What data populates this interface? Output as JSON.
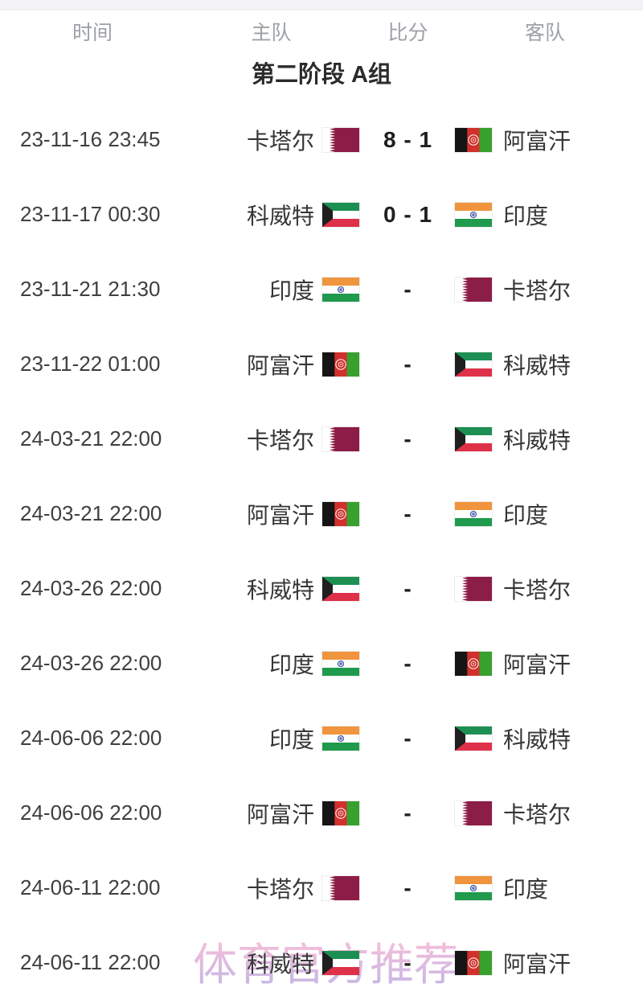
{
  "header": {
    "columns": [
      {
        "id": "time",
        "label": "时间"
      },
      {
        "id": "home",
        "label": "主队"
      },
      {
        "id": "score",
        "label": "比分"
      },
      {
        "id": "away",
        "label": "客队"
      }
    ]
  },
  "section": {
    "title": "第二阶段 A组"
  },
  "watermark": {
    "text": "体育官方推荐",
    "color_top": "#f8b4d2",
    "color_bottom": "#b9aae2"
  },
  "flag_colors": {
    "qatar": {
      "maroon": "#8c1d46",
      "white": "#ffffff"
    },
    "kuwait": {
      "green": "#1e8f53",
      "white": "#ffffff",
      "red": "#df3049",
      "black": "#1f1f1f"
    },
    "afghanistan": {
      "black": "#151515",
      "red": "#d2302c",
      "green": "#38a12e",
      "emblem": "#ffffff"
    },
    "india": {
      "saffron": "#f0943d",
      "white": "#ffffff",
      "green": "#209a4c",
      "navy": "#32479e"
    }
  },
  "matches": [
    {
      "time": "23-11-16 23:45",
      "home": "卡塔尔",
      "home_flag": "qatar",
      "score": "8 - 1",
      "away": "阿富汗",
      "away_flag": "afghanistan"
    },
    {
      "time": "23-11-17 00:30",
      "home": "科威特",
      "home_flag": "kuwait",
      "score": "0 - 1",
      "away": "印度",
      "away_flag": "india"
    },
    {
      "time": "23-11-21 21:30",
      "home": "印度",
      "home_flag": "india",
      "score": "-",
      "away": "卡塔尔",
      "away_flag": "qatar"
    },
    {
      "time": "23-11-22 01:00",
      "home": "阿富汗",
      "home_flag": "afghanistan",
      "score": "-",
      "away": "科威特",
      "away_flag": "kuwait"
    },
    {
      "time": "24-03-21 22:00",
      "home": "卡塔尔",
      "home_flag": "qatar",
      "score": "-",
      "away": "科威特",
      "away_flag": "kuwait"
    },
    {
      "time": "24-03-21 22:00",
      "home": "阿富汗",
      "home_flag": "afghanistan",
      "score": "-",
      "away": "印度",
      "away_flag": "india"
    },
    {
      "time": "24-03-26 22:00",
      "home": "科威特",
      "home_flag": "kuwait",
      "score": "-",
      "away": "卡塔尔",
      "away_flag": "qatar"
    },
    {
      "time": "24-03-26 22:00",
      "home": "印度",
      "home_flag": "india",
      "score": "-",
      "away": "阿富汗",
      "away_flag": "afghanistan"
    },
    {
      "time": "24-06-06 22:00",
      "home": "印度",
      "home_flag": "india",
      "score": "-",
      "away": "科威特",
      "away_flag": "kuwait"
    },
    {
      "time": "24-06-06 22:00",
      "home": "阿富汗",
      "home_flag": "afghanistan",
      "score": "-",
      "away": "卡塔尔",
      "away_flag": "qatar"
    },
    {
      "time": "24-06-11 22:00",
      "home": "卡塔尔",
      "home_flag": "qatar",
      "score": "-",
      "away": "印度",
      "away_flag": "india"
    },
    {
      "time": "24-06-11 22:00",
      "home": "科威特",
      "home_flag": "kuwait",
      "score": "-",
      "away": "阿富汗",
      "away_flag": "afghanistan"
    }
  ]
}
